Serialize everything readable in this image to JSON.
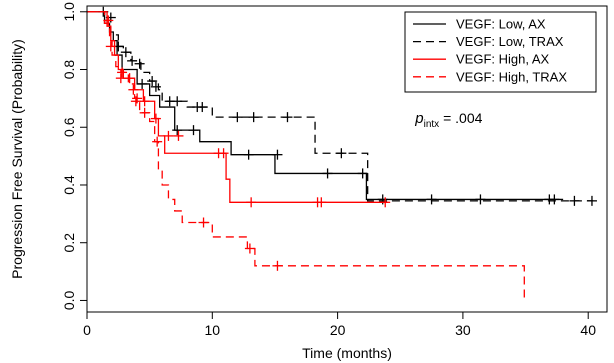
{
  "chart_data": {
    "type": "line",
    "subtype": "kaplan-meier step",
    "xlabel": "Time (months)",
    "ylabel": "Progression Free Survival (Probability)",
    "xlim": [
      0,
      41.5
    ],
    "ylim": [
      -0.04,
      1.02
    ],
    "x_ticks": [
      0,
      10,
      20,
      30,
      40
    ],
    "y_ticks": [
      0.0,
      0.2,
      0.4,
      0.6,
      0.8,
      1.0
    ],
    "x_tick_labels": [
      "0",
      "10",
      "20",
      "30",
      "40"
    ],
    "y_tick_labels": [
      "0.0",
      "0.2",
      "0.4",
      "0.6",
      "0.8",
      "1.0"
    ],
    "grid": false,
    "legend_position": "top-right",
    "annotation": {
      "p": "p",
      "sub": "intx",
      "value": " = .004",
      "x": 26.2,
      "y": 0.615
    },
    "series": [
      {
        "name": "VEGF: Low, AX",
        "color": "#000000",
        "dash": "solid",
        "steps": [
          [
            0,
            1.0
          ],
          [
            1.4,
            0.96
          ],
          [
            1.8,
            0.93
          ],
          [
            2.1,
            0.9
          ],
          [
            2.4,
            0.85
          ],
          [
            2.8,
            0.8
          ],
          [
            4.0,
            0.75
          ],
          [
            5.0,
            0.71
          ],
          [
            5.8,
            0.67
          ],
          [
            7.0,
            0.59
          ],
          [
            9.0,
            0.55
          ],
          [
            11.5,
            0.505
          ],
          [
            15.0,
            0.44
          ],
          [
            22.3,
            0.35
          ],
          [
            38.0,
            0.35
          ]
        ],
        "censors": [
          [
            4.4,
            0.75
          ],
          [
            7.2,
            0.59
          ],
          [
            8.5,
            0.59
          ],
          [
            12.9,
            0.505
          ],
          [
            15.2,
            0.505
          ],
          [
            19.2,
            0.44
          ],
          [
            22.0,
            0.44
          ],
          [
            23.6,
            0.35
          ],
          [
            27.5,
            0.35
          ],
          [
            31.4,
            0.35
          ],
          [
            36.9,
            0.35
          ],
          [
            37.3,
            0.35
          ]
        ]
      },
      {
        "name": "VEGF: Low, TRAX",
        "color": "#000000",
        "dash": "8,5",
        "steps": [
          [
            0,
            1.0
          ],
          [
            1.4,
            0.97
          ],
          [
            1.9,
            0.92
          ],
          [
            2.5,
            0.88
          ],
          [
            2.9,
            0.86
          ],
          [
            3.5,
            0.83
          ],
          [
            4.3,
            0.79
          ],
          [
            5.0,
            0.76
          ],
          [
            5.7,
            0.73
          ],
          [
            6.0,
            0.69
          ],
          [
            8.0,
            0.67
          ],
          [
            10.0,
            0.635
          ],
          [
            18.2,
            0.51
          ],
          [
            22.4,
            0.345
          ],
          [
            40.4,
            0.345
          ]
        ],
        "censors": [
          [
            1.3,
            1.0
          ],
          [
            1.9,
            0.98
          ],
          [
            2.5,
            0.88
          ],
          [
            3.1,
            0.86
          ],
          [
            3.6,
            0.83
          ],
          [
            4.2,
            0.82
          ],
          [
            5.2,
            0.76
          ],
          [
            5.5,
            0.74
          ],
          [
            6.6,
            0.69
          ],
          [
            7.2,
            0.69
          ],
          [
            8.8,
            0.67
          ],
          [
            9.2,
            0.67
          ],
          [
            12.0,
            0.635
          ],
          [
            13.3,
            0.635
          ],
          [
            16.0,
            0.635
          ],
          [
            20.3,
            0.51
          ],
          [
            38.9,
            0.345
          ],
          [
            40.3,
            0.345
          ]
        ]
      },
      {
        "name": "VEGF: High, AX",
        "color": "#ff0000",
        "dash": "solid",
        "steps": [
          [
            0,
            1.0
          ],
          [
            1.6,
            0.95
          ],
          [
            1.9,
            0.9
          ],
          [
            2.2,
            0.85
          ],
          [
            2.5,
            0.8
          ],
          [
            2.9,
            0.77
          ],
          [
            3.8,
            0.73
          ],
          [
            4.5,
            0.69
          ],
          [
            5.4,
            0.63
          ],
          [
            5.7,
            0.57
          ],
          [
            6.2,
            0.51
          ],
          [
            11.1,
            0.42
          ],
          [
            11.4,
            0.34
          ],
          [
            24.0,
            0.34
          ]
        ],
        "censors": [
          [
            2.7,
            0.77
          ],
          [
            3.4,
            0.77
          ],
          [
            4.0,
            0.7
          ],
          [
            4.6,
            0.69
          ],
          [
            5.5,
            0.63
          ],
          [
            6.5,
            0.57
          ],
          [
            7.3,
            0.57
          ],
          [
            10.5,
            0.51
          ],
          [
            10.9,
            0.51
          ],
          [
            13.1,
            0.34
          ],
          [
            18.4,
            0.34
          ],
          [
            18.7,
            0.34
          ],
          [
            23.8,
            0.34
          ]
        ]
      },
      {
        "name": "VEGF: High, TRAX",
        "color": "#ff0000",
        "dash": "8,5",
        "steps": [
          [
            0,
            1.0
          ],
          [
            1.4,
            0.96
          ],
          [
            1.8,
            0.9
          ],
          [
            2.0,
            0.85
          ],
          [
            2.3,
            0.81
          ],
          [
            2.7,
            0.79
          ],
          [
            3.3,
            0.75
          ],
          [
            3.8,
            0.7
          ],
          [
            4.2,
            0.65
          ],
          [
            5.0,
            0.62
          ],
          [
            5.4,
            0.55
          ],
          [
            5.7,
            0.45
          ],
          [
            6.0,
            0.4
          ],
          [
            6.5,
            0.35
          ],
          [
            7.0,
            0.31
          ],
          [
            7.6,
            0.27
          ],
          [
            10.0,
            0.22
          ],
          [
            12.8,
            0.18
          ],
          [
            13.4,
            0.12
          ],
          [
            34.9,
            0.12
          ],
          [
            34.9,
            0.0
          ]
        ],
        "censors": [
          [
            1.7,
            0.97
          ],
          [
            1.9,
            0.88
          ],
          [
            2.8,
            0.79
          ],
          [
            3.7,
            0.73
          ],
          [
            3.9,
            0.69
          ],
          [
            4.6,
            0.65
          ],
          [
            5.6,
            0.55
          ],
          [
            9.3,
            0.27
          ],
          [
            13.0,
            0.18
          ],
          [
            15.2,
            0.12
          ]
        ]
      }
    ]
  }
}
